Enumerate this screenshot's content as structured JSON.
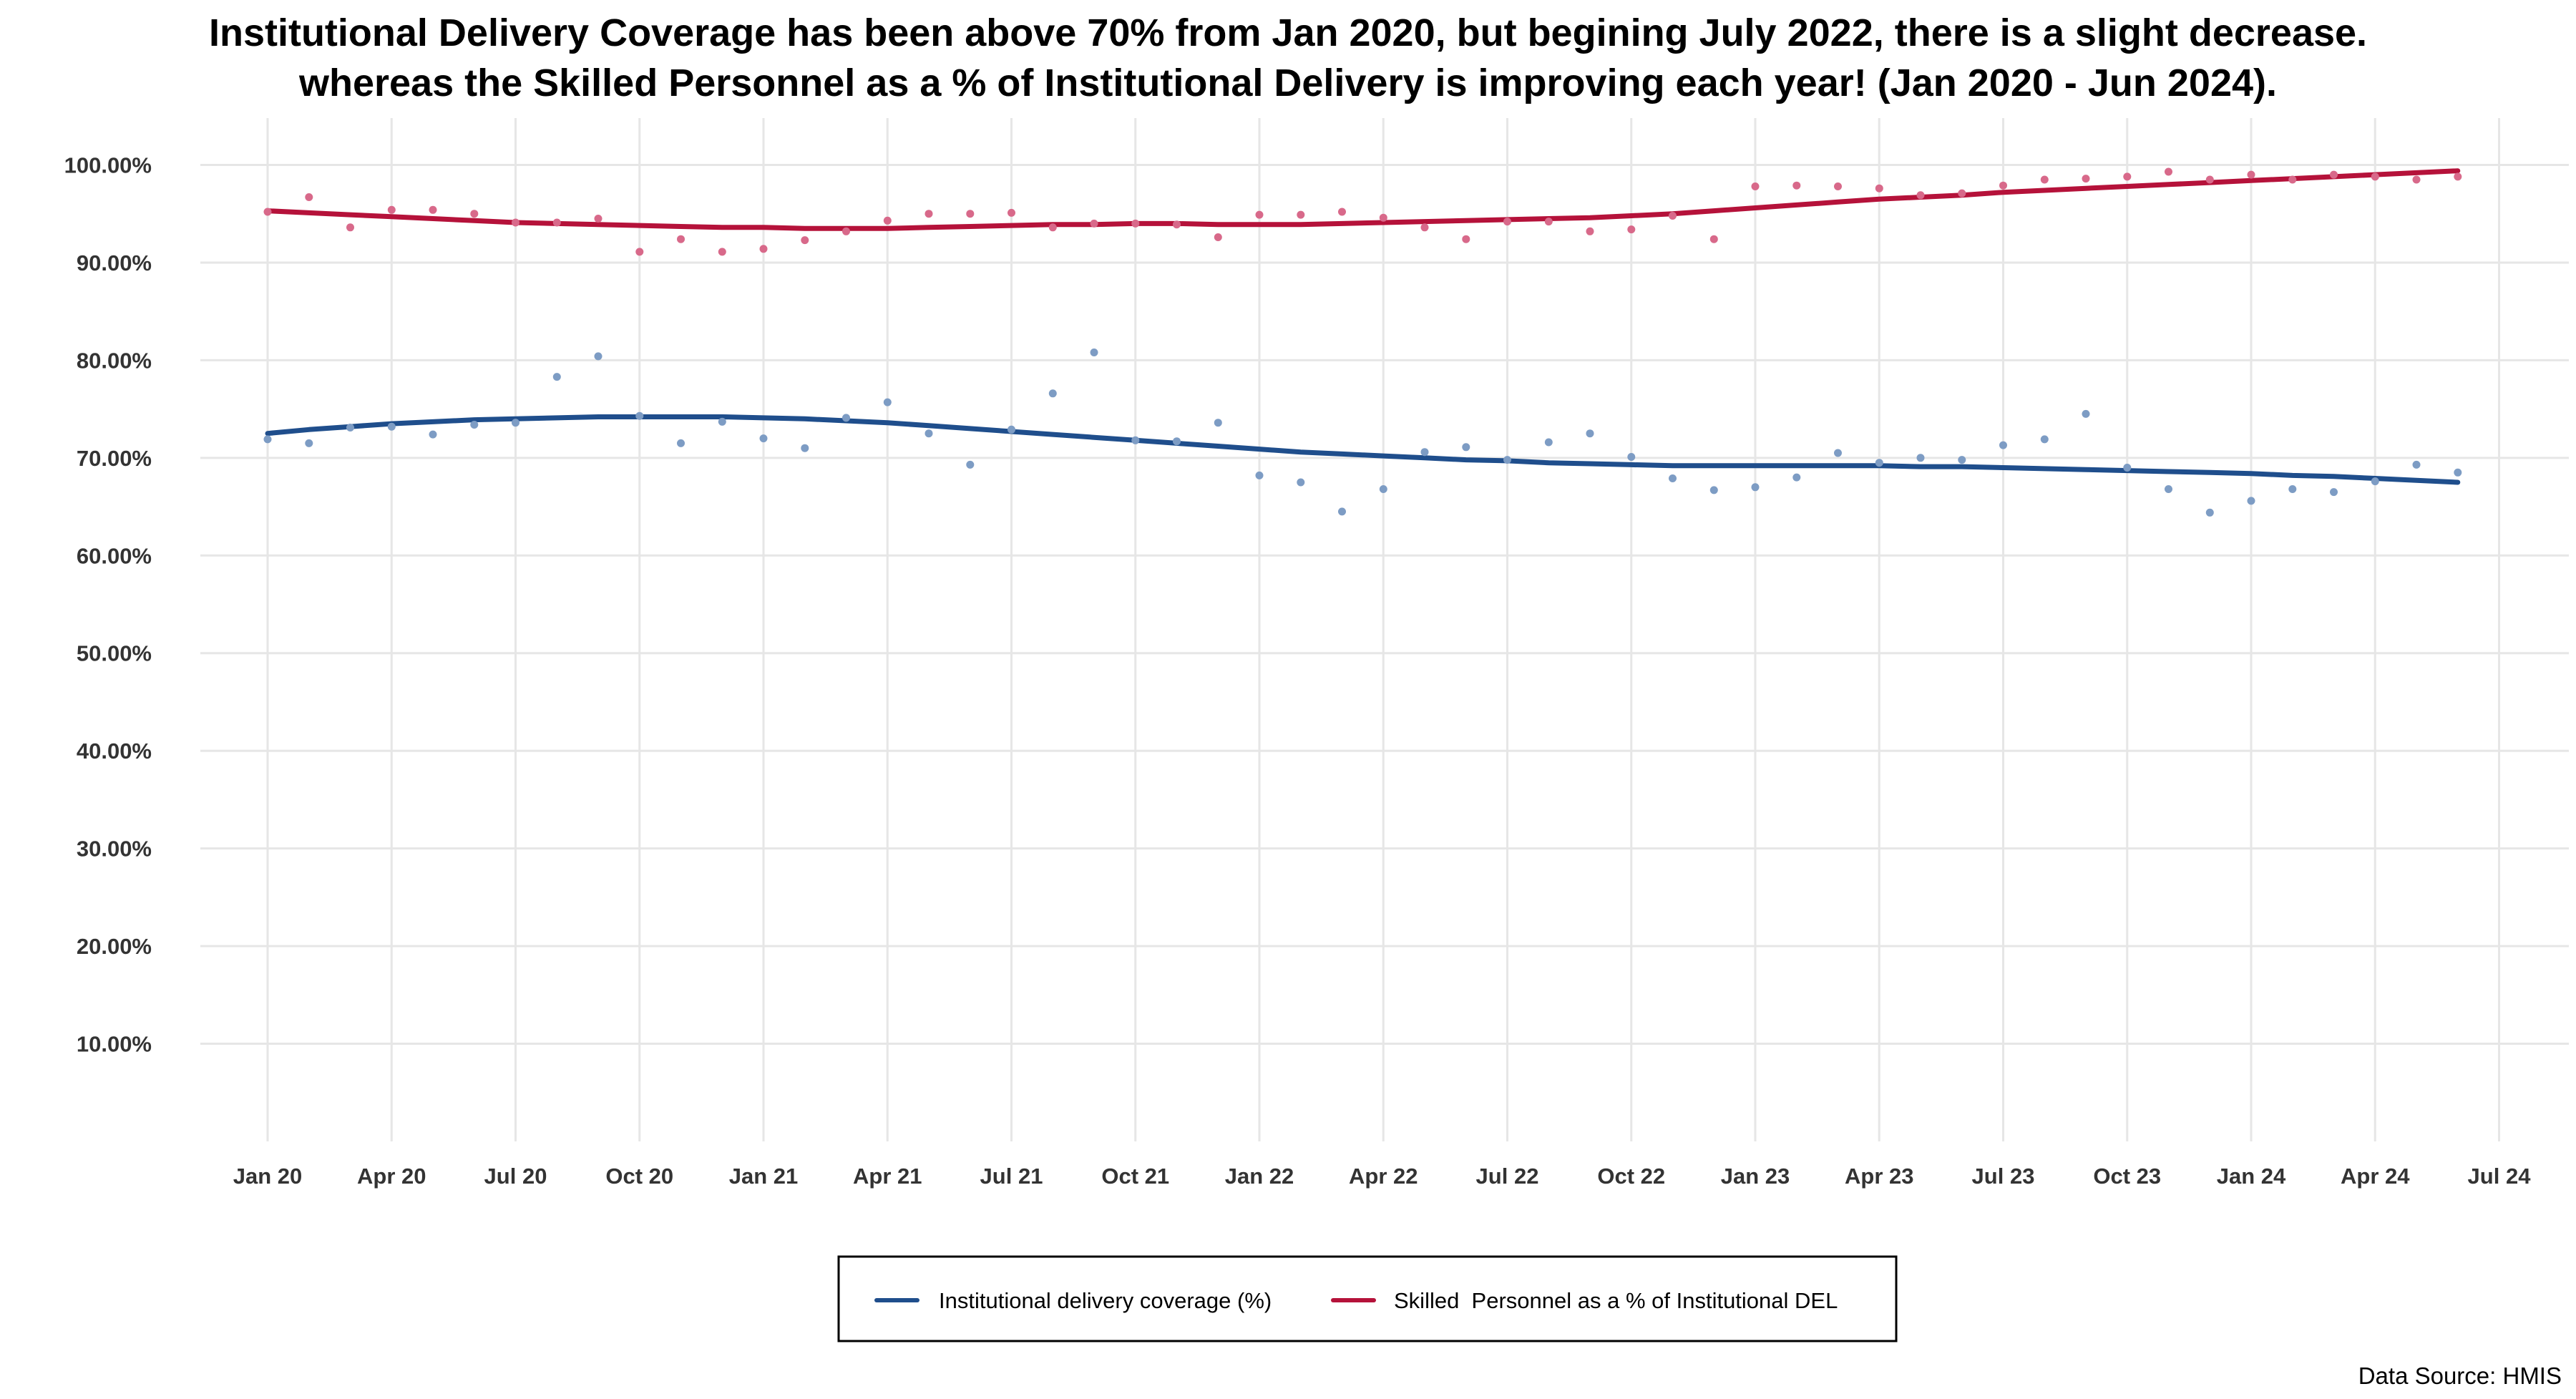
{
  "chart_data": {
    "type": "scatter",
    "title": [
      "Institutional Delivery Coverage has been above 70% from Jan 2020, but begining July 2022, there is a slight decrease.",
      "whereas the Skilled Personnel as a % of Institutional Delivery is improving each year! (Jan 2020 - Jun 2024)."
    ],
    "xlabel": "",
    "ylabel": "",
    "x_ticks": [
      "Jan 20",
      "Apr 20",
      "Jul 20",
      "Oct 20",
      "Jan 21",
      "Apr 21",
      "Jul 21",
      "Oct 21",
      "Jan 22",
      "Apr 22",
      "Jul 22",
      "Oct 22",
      "Jan 23",
      "Apr 23",
      "Jul 23",
      "Oct 23",
      "Jan 24",
      "Apr 24",
      "Jul 24"
    ],
    "y_ticks": [
      "10.00%",
      "20.00%",
      "30.00%",
      "40.00%",
      "50.00%",
      "60.00%",
      "70.00%",
      "80.00%",
      "90.00%",
      "100.00%"
    ],
    "y_tick_values": [
      10,
      20,
      30,
      40,
      50,
      60,
      70,
      80,
      90,
      100
    ],
    "ylim": [
      0,
      104.8
    ],
    "xlim": [
      "Nov 19",
      "Aug 24"
    ],
    "x": [
      "2020-01",
      "2020-02",
      "2020-03",
      "2020-04",
      "2020-05",
      "2020-06",
      "2020-07",
      "2020-08",
      "2020-09",
      "2020-10",
      "2020-11",
      "2020-12",
      "2021-01",
      "2021-02",
      "2021-03",
      "2021-04",
      "2021-05",
      "2021-06",
      "2021-07",
      "2021-08",
      "2021-09",
      "2021-10",
      "2021-11",
      "2021-12",
      "2022-01",
      "2022-02",
      "2022-03",
      "2022-04",
      "2022-05",
      "2022-06",
      "2022-07",
      "2022-08",
      "2022-09",
      "2022-10",
      "2022-11",
      "2022-12",
      "2023-01",
      "2023-02",
      "2023-03",
      "2023-04",
      "2023-05",
      "2023-06",
      "2023-07",
      "2023-08",
      "2023-09",
      "2023-10",
      "2023-11",
      "2023-12",
      "2024-01",
      "2024-02",
      "2024-03",
      "2024-04",
      "2024-05",
      "2024-06"
    ],
    "grid": true,
    "legend_position": "bottom",
    "series": [
      {
        "name": "Institutional delivery coverage (%)",
        "color": "#1f4e8c",
        "point_color": "#7d9cc4",
        "values": [
          71.9,
          71.5,
          73.1,
          73.2,
          72.4,
          73.4,
          73.6,
          78.3,
          80.4,
          74.3,
          71.5,
          73.7,
          72.0,
          71.0,
          74.1,
          75.7,
          72.5,
          69.3,
          72.9,
          76.6,
          80.8,
          71.8,
          71.7,
          73.6,
          68.2,
          67.5,
          64.5,
          66.8,
          70.6,
          71.1,
          69.8,
          71.6,
          72.5,
          70.1,
          67.9,
          66.7,
          67.0,
          68.0,
          70.5,
          69.5,
          70.0,
          69.8,
          71.3,
          71.9,
          74.5,
          69.0,
          66.8,
          64.4,
          65.6,
          66.8,
          66.5,
          67.6,
          69.3,
          68.5
        ],
        "trend": [
          72.5,
          72.9,
          73.2,
          73.5,
          73.7,
          73.9,
          74.0,
          74.1,
          74.2,
          74.2,
          74.2,
          74.2,
          74.1,
          74.0,
          73.8,
          73.6,
          73.3,
          73.0,
          72.7,
          72.4,
          72.1,
          71.8,
          71.5,
          71.2,
          70.9,
          70.6,
          70.4,
          70.2,
          70.0,
          69.8,
          69.7,
          69.5,
          69.4,
          69.3,
          69.2,
          69.2,
          69.2,
          69.2,
          69.2,
          69.2,
          69.1,
          69.1,
          69.0,
          68.9,
          68.8,
          68.7,
          68.6,
          68.5,
          68.4,
          68.2,
          68.1,
          67.9,
          67.7,
          67.5
        ]
      },
      {
        "name": "Skilled  Personnel as a % of Institutional DEL",
        "color": "#b5123a",
        "point_color": "#d8698a",
        "values": [
          95.2,
          96.7,
          93.6,
          95.4,
          95.4,
          95.0,
          94.1,
          94.1,
          94.5,
          91.1,
          92.4,
          91.1,
          91.4,
          92.3,
          93.2,
          94.3,
          95.0,
          95.0,
          95.1,
          93.6,
          94.0,
          94.0,
          93.9,
          92.6,
          94.9,
          94.9,
          95.2,
          94.6,
          93.6,
          92.4,
          94.2,
          94.2,
          93.2,
          93.4,
          94.8,
          92.4,
          97.8,
          97.9,
          97.8,
          97.6,
          96.9,
          97.1,
          97.9,
          98.5,
          98.6,
          98.8,
          99.3,
          98.5,
          99.0,
          98.5,
          99.0,
          98.8,
          98.5,
          98.8
        ],
        "trend": [
          95.3,
          95.1,
          94.9,
          94.7,
          94.5,
          94.3,
          94.1,
          94.0,
          93.9,
          93.8,
          93.7,
          93.6,
          93.6,
          93.5,
          93.5,
          93.5,
          93.6,
          93.7,
          93.8,
          93.9,
          93.9,
          94.0,
          94.0,
          93.9,
          93.9,
          93.9,
          94.0,
          94.1,
          94.2,
          94.3,
          94.4,
          94.5,
          94.6,
          94.8,
          95.0,
          95.3,
          95.6,
          95.9,
          96.2,
          96.5,
          96.7,
          96.9,
          97.2,
          97.4,
          97.6,
          97.8,
          98.0,
          98.2,
          98.4,
          98.6,
          98.8,
          99.0,
          99.2,
          99.4
        ]
      }
    ],
    "source_note": "Data Source: HMIS"
  }
}
